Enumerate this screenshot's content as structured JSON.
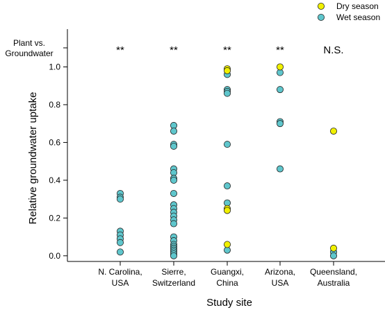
{
  "chart_data": {
    "type": "scatter",
    "xlabel": "Study site",
    "ylabel": "Relative groundwater uptake",
    "ylim": [
      -0.03,
      1.2
    ],
    "yticks": [
      "0.0",
      "0.2",
      "0.4",
      "0.6",
      "0.8",
      "1.0"
    ],
    "categories": [
      [
        "N. Carolina,",
        "USA"
      ],
      [
        "Sierre,",
        "Switzerland"
      ],
      [
        "Guangxi,",
        "China"
      ],
      [
        "Arizona,",
        "USA"
      ],
      [
        "Queensland,",
        "Australia"
      ]
    ],
    "row_label": [
      "Plant vs.",
      "Groundwater"
    ],
    "significance": [
      "**",
      "**",
      "**",
      "**",
      "N.S."
    ],
    "legend_position": "top-right",
    "colors": {
      "dry": "#f0f000",
      "wet": "#5fc6cc",
      "outline": "#222222"
    },
    "series": [
      {
        "name": "Dry season",
        "color": "#f0f000",
        "points": [
          [
            "Guangxi,",
            0.99
          ],
          [
            "Guangxi,",
            0.98
          ],
          [
            "Guangxi,",
            0.25
          ],
          [
            "Guangxi,",
            0.24
          ],
          [
            "Guangxi,",
            0.06
          ],
          [
            "Arizona,",
            1.0
          ],
          [
            "Queensland,",
            0.66
          ],
          [
            "Queensland,",
            0.04
          ]
        ]
      },
      {
        "name": "Wet season",
        "color": "#5fc6cc",
        "points": [
          [
            "N. Carolina,",
            0.33
          ],
          [
            "N. Carolina,",
            0.31
          ],
          [
            "N. Carolina,",
            0.3
          ],
          [
            "N. Carolina,",
            0.13
          ],
          [
            "N. Carolina,",
            0.11
          ],
          [
            "N. Carolina,",
            0.09
          ],
          [
            "N. Carolina,",
            0.07
          ],
          [
            "N. Carolina,",
            0.02
          ],
          [
            "Sierre,",
            0.69
          ],
          [
            "Sierre,",
            0.66
          ],
          [
            "Sierre,",
            0.59
          ],
          [
            "Sierre,",
            0.58
          ],
          [
            "Sierre,",
            0.46
          ],
          [
            "Sierre,",
            0.44
          ],
          [
            "Sierre,",
            0.41
          ],
          [
            "Sierre,",
            0.4
          ],
          [
            "Sierre,",
            0.33
          ],
          [
            "Sierre,",
            0.27
          ],
          [
            "Sierre,",
            0.25
          ],
          [
            "Sierre,",
            0.23
          ],
          [
            "Sierre,",
            0.21
          ],
          [
            "Sierre,",
            0.19
          ],
          [
            "Sierre,",
            0.17
          ],
          [
            "Sierre,",
            0.1
          ],
          [
            "Sierre,",
            0.08
          ],
          [
            "Sierre,",
            0.06
          ],
          [
            "Sierre,",
            0.05
          ],
          [
            "Sierre,",
            0.04
          ],
          [
            "Sierre,",
            0.03
          ],
          [
            "Sierre,",
            0.02
          ],
          [
            "Sierre,",
            0.01
          ],
          [
            "Sierre,",
            0.0
          ],
          [
            "Guangxi,",
            0.96
          ],
          [
            "Guangxi,",
            0.88
          ],
          [
            "Guangxi,",
            0.87
          ],
          [
            "Guangxi,",
            0.86
          ],
          [
            "Guangxi,",
            0.59
          ],
          [
            "Guangxi,",
            0.37
          ],
          [
            "Guangxi,",
            0.28
          ],
          [
            "Guangxi,",
            0.03
          ],
          [
            "Arizona,",
            0.97
          ],
          [
            "Arizona,",
            0.88
          ],
          [
            "Arizona,",
            0.71
          ],
          [
            "Arizona,",
            0.7
          ],
          [
            "Arizona,",
            0.46
          ],
          [
            "Queensland,",
            0.02
          ],
          [
            "Queensland,",
            0.0
          ]
        ]
      }
    ]
  }
}
